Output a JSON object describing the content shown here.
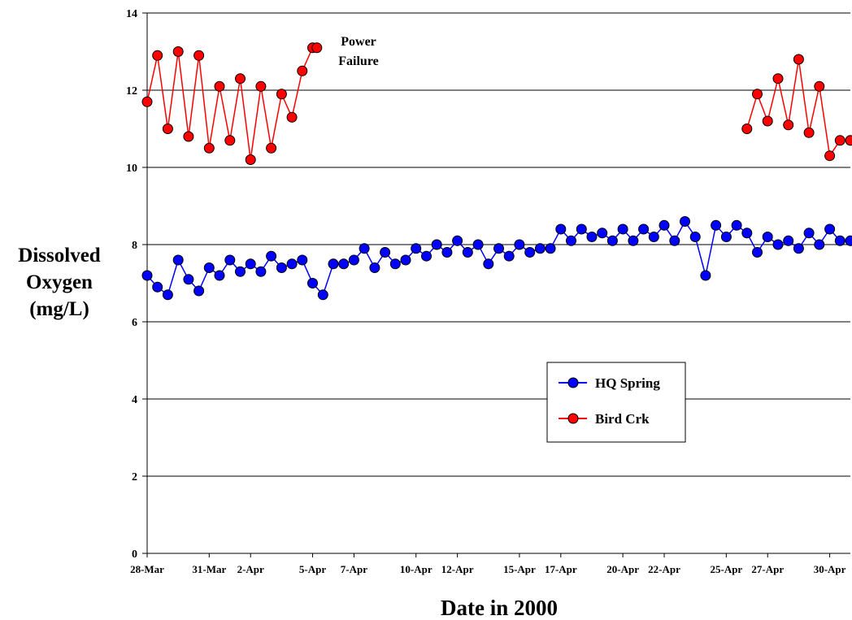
{
  "chart_data": {
    "type": "line",
    "title": "",
    "xlabel": "Date in 2000",
    "ylabel_lines": [
      "Dissolved",
      "Oxygen",
      "(mg/L)"
    ],
    "ylim": [
      0,
      14
    ],
    "yticks": [
      0,
      2,
      4,
      6,
      8,
      10,
      12,
      14
    ],
    "xlim": [
      "2000-03-28",
      "2000-05-01"
    ],
    "xtick_labels": [
      "28-Mar",
      "31-Mar",
      "2-Apr",
      "5-Apr",
      "7-Apr",
      "10-Apr",
      "12-Apr",
      "15-Apr",
      "17-Apr",
      "20-Apr",
      "22-Apr",
      "25-Apr",
      "27-Apr",
      "30-Apr"
    ],
    "xtick_dates": [
      "2000-03-28",
      "2000-03-31",
      "2000-04-02",
      "2000-04-05",
      "2000-04-07",
      "2000-04-10",
      "2000-04-12",
      "2000-04-15",
      "2000-04-17",
      "2000-04-20",
      "2000-04-22",
      "2000-04-25",
      "2000-04-27",
      "2000-04-30"
    ],
    "grid": "horizontal",
    "legend": "center-right",
    "annotation": {
      "lines": [
        "Power",
        "Failure"
      ],
      "date": "2000-04-05"
    },
    "series": [
      {
        "name": "HQ Spring",
        "color": "#0000ff",
        "marker_fill": "#0000ff",
        "x": [
          "2000-03-28",
          "2000-03-28 12:00",
          "2000-03-29",
          "2000-03-29 12:00",
          "2000-03-30",
          "2000-03-30 12:00",
          "2000-03-31",
          "2000-03-31 12:00",
          "2000-04-01",
          "2000-04-01 12:00",
          "2000-04-02",
          "2000-04-02 12:00",
          "2000-04-03",
          "2000-04-03 12:00",
          "2000-04-04",
          "2000-04-04 12:00",
          "2000-04-05",
          "2000-04-05 12:00",
          "2000-04-06",
          "2000-04-06 12:00",
          "2000-04-07",
          "2000-04-07 12:00",
          "2000-04-08",
          "2000-04-08 12:00",
          "2000-04-09",
          "2000-04-09 12:00",
          "2000-04-10",
          "2000-04-10 12:00",
          "2000-04-11",
          "2000-04-11 12:00",
          "2000-04-12",
          "2000-04-12 12:00",
          "2000-04-13",
          "2000-04-13 12:00",
          "2000-04-14",
          "2000-04-14 12:00",
          "2000-04-15",
          "2000-04-15 12:00",
          "2000-04-16",
          "2000-04-16 12:00",
          "2000-04-17",
          "2000-04-17 12:00",
          "2000-04-18",
          "2000-04-18 12:00",
          "2000-04-19",
          "2000-04-19 12:00",
          "2000-04-20",
          "2000-04-20 12:00",
          "2000-04-21",
          "2000-04-21 12:00",
          "2000-04-22",
          "2000-04-22 12:00",
          "2000-04-23",
          "2000-04-23 12:00",
          "2000-04-24",
          "2000-04-24 12:00",
          "2000-04-25",
          "2000-04-25 12:00",
          "2000-04-26",
          "2000-04-26 12:00",
          "2000-04-27",
          "2000-04-27 12:00",
          "2000-04-28",
          "2000-04-28 12:00",
          "2000-04-29",
          "2000-04-29 12:00",
          "2000-04-30",
          "2000-04-30 12:00",
          "2000-05-01"
        ],
        "y": [
          7.2,
          6.9,
          6.7,
          7.6,
          7.1,
          6.8,
          7.4,
          7.2,
          7.6,
          7.3,
          7.5,
          7.3,
          7.7,
          7.4,
          7.5,
          7.6,
          7.0,
          6.7,
          7.5,
          7.5,
          7.6,
          7.9,
          7.4,
          7.8,
          7.5,
          7.6,
          7.9,
          7.7,
          8.0,
          7.8,
          8.1,
          7.8,
          8.0,
          7.5,
          7.9,
          7.7,
          8.0,
          7.8,
          7.9,
          7.9,
          8.4,
          8.1,
          8.4,
          8.2,
          8.3,
          8.1,
          8.4,
          8.1,
          8.4,
          8.2,
          8.5,
          8.1,
          8.6,
          8.2,
          7.2,
          8.5,
          8.2,
          8.5,
          8.3,
          7.8,
          8.2,
          8.0,
          8.1,
          7.9,
          8.3,
          8.0,
          8.4,
          8.1,
          8.1
        ]
      },
      {
        "name": "Bird Crk",
        "color": "#ff0000",
        "marker_fill": "#ff0000",
        "x": [
          "2000-03-28",
          "2000-03-28 12:00",
          "2000-03-29",
          "2000-03-29 12:00",
          "2000-03-30",
          "2000-03-30 12:00",
          "2000-03-31",
          "2000-03-31 12:00",
          "2000-04-01",
          "2000-04-01 12:00",
          "2000-04-02",
          "2000-04-02 12:00",
          "2000-04-03",
          "2000-04-03 12:00",
          "2000-04-04",
          "2000-04-04 12:00",
          "2000-04-05",
          "2000-04-05 05:00",
          "2000-04-26",
          "2000-04-26 12:00",
          "2000-04-27",
          "2000-04-27 12:00",
          "2000-04-28",
          "2000-04-28 12:00",
          "2000-04-29",
          "2000-04-29 12:00",
          "2000-04-30",
          "2000-04-30 12:00",
          "2000-05-01"
        ],
        "y": [
          11.7,
          12.9,
          11.0,
          13.0,
          10.8,
          12.9,
          10.5,
          12.1,
          10.7,
          12.3,
          10.2,
          12.1,
          10.5,
          11.9,
          11.3,
          12.5,
          13.1,
          13.1,
          11.0,
          11.9,
          11.2,
          12.3,
          11.1,
          12.8,
          10.9,
          12.1,
          10.3,
          10.7,
          10.7
        ]
      }
    ]
  }
}
